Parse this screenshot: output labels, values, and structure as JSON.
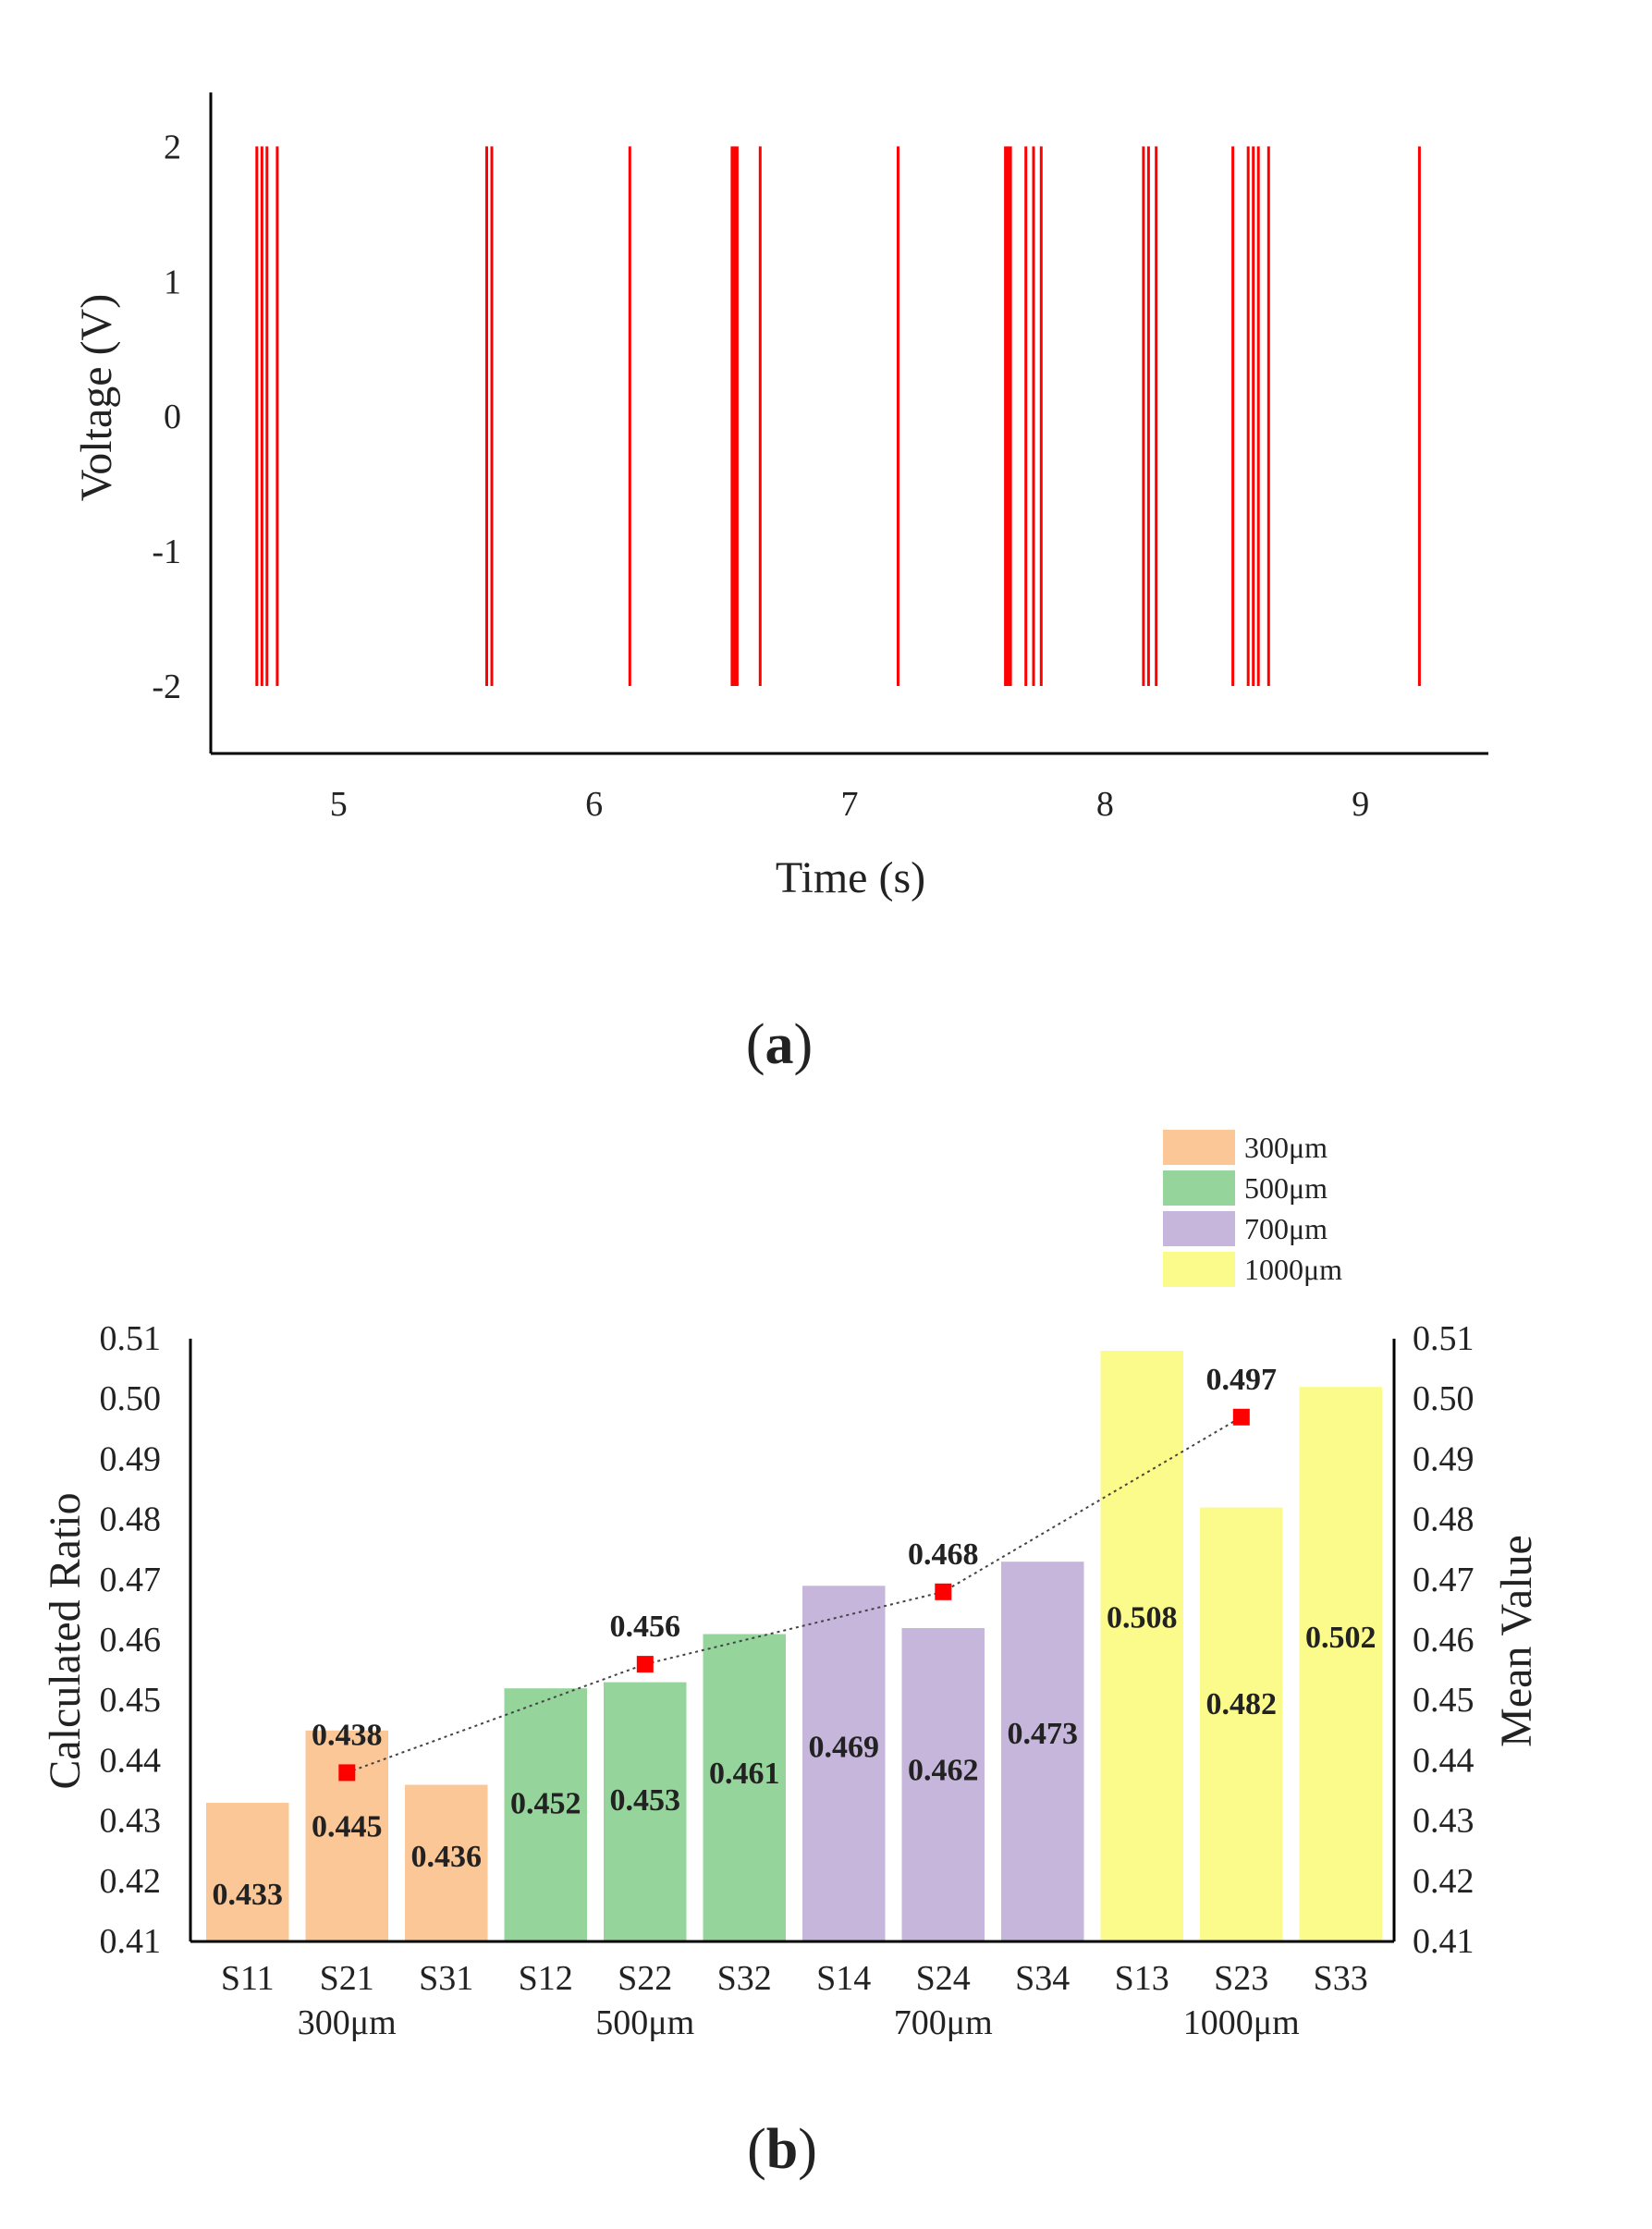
{
  "panel_a_label": {
    "open": "(",
    "letter": "a",
    "close": ")"
  },
  "panel_b_label": {
    "open": "(",
    "letter": "b",
    "close": ")"
  },
  "chart_data": [
    {
      "type": "line",
      "xlabel": "Time (s)",
      "ylabel": "Voltage (V)",
      "xlim": [
        4.5,
        9.5
      ],
      "ylim": [
        -2.5,
        2.4
      ],
      "xticks": [
        5,
        6,
        7,
        8,
        9
      ],
      "yticks": [
        2,
        1,
        0,
        -1,
        -2
      ],
      "series": [
        {
          "color": "#ff0000",
          "pulse_low": -2,
          "pulse_high": 2,
          "pulse_times": [
            4.68,
            4.7,
            4.72,
            4.76,
            5.58,
            5.6,
            6.14,
            6.54,
            6.55,
            6.56,
            6.65,
            7.19,
            7.61,
            7.62,
            7.63,
            7.69,
            7.72,
            7.75,
            8.15,
            8.17,
            8.2,
            8.5,
            8.56,
            8.58,
            8.6,
            8.64,
            9.23
          ]
        }
      ]
    },
    {
      "type": "bar",
      "ylabel": "Calculated Ratio",
      "y2label": "Mean Value",
      "ylim": [
        0.41,
        0.51
      ],
      "yticks": [
        "0.51",
        "0.50",
        "0.49",
        "0.48",
        "0.47",
        "0.46",
        "0.45",
        "0.44",
        "0.43",
        "0.42",
        "0.41"
      ],
      "categories": [
        "S11",
        "S21",
        "S31",
        "S12",
        "S22",
        "S32",
        "S14",
        "S24",
        "S34",
        "S13",
        "S23",
        "S33"
      ],
      "values": [
        0.433,
        0.445,
        0.436,
        0.452,
        0.453,
        0.461,
        0.469,
        0.462,
        0.473,
        0.508,
        0.482,
        0.502
      ],
      "value_labels": [
        "0.433",
        "0.445",
        "0.436",
        "0.452",
        "0.453",
        "0.461",
        "0.469",
        "0.462",
        "0.473",
        "0.508",
        "0.482",
        "0.502"
      ],
      "groups": [
        {
          "name": "300μm",
          "color": "#fbc797",
          "members": [
            "S11",
            "S21",
            "S31"
          ]
        },
        {
          "name": "500μm",
          "color": "#95d49b",
          "members": [
            "S12",
            "S22",
            "S32"
          ]
        },
        {
          "name": "700μm",
          "color": "#c6b6db",
          "members": [
            "S14",
            "S24",
            "S34"
          ]
        },
        {
          "name": "1000μm",
          "color": "#fbfb8b",
          "members": [
            "S13",
            "S23",
            "S33"
          ]
        }
      ],
      "mean_series": {
        "color": "#ff0000",
        "at_categories": [
          "S21",
          "S22",
          "S24",
          "S23"
        ],
        "values": [
          0.438,
          0.456,
          0.468,
          0.497
        ],
        "labels": [
          "0.438",
          "0.456",
          "0.468",
          "0.497"
        ]
      },
      "legend": {
        "position": "top-right"
      }
    }
  ]
}
